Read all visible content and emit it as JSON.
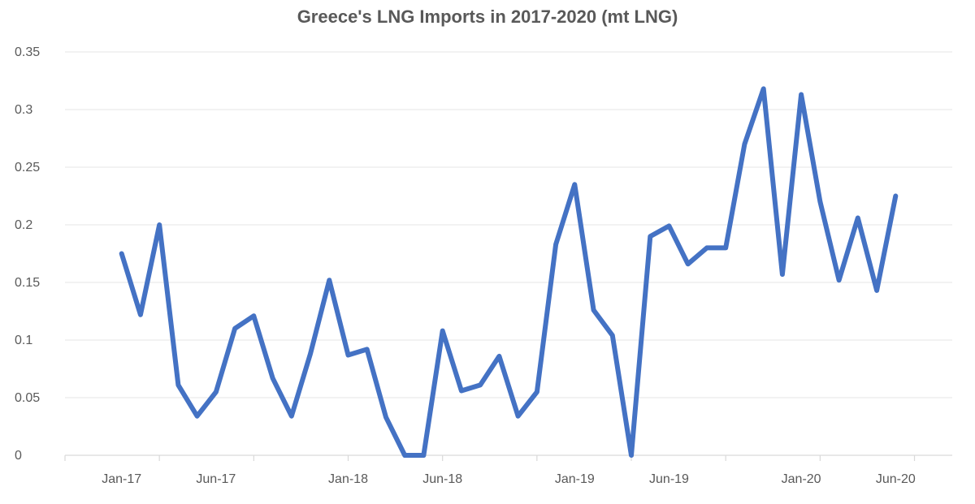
{
  "chart_data": {
    "type": "line",
    "title": "Greece's LNG Imports in 2017-2020 (mt LNG)",
    "xlabel": "",
    "ylabel": "",
    "ylim": [
      0,
      0.35
    ],
    "yticks": [
      0,
      0.05,
      0.1,
      0.15,
      0.2,
      0.25,
      0.3,
      0.35
    ],
    "ytick_labels": [
      "0",
      "0.05",
      "0.1",
      "0.15",
      "0.2",
      "0.25",
      "0.3",
      "0.35"
    ],
    "x_tick_labels": [
      "Jan-17",
      "Jun-17",
      "Jan-18",
      "Jun-18",
      "Jan-19",
      "Jun-19",
      "Jan-20",
      "Jun-20"
    ],
    "x": [
      "2017-01",
      "2017-02",
      "2017-03",
      "2017-04",
      "2017-05",
      "2017-06",
      "2017-07",
      "2017-08",
      "2017-09",
      "2017-10",
      "2017-11",
      "2017-12",
      "2018-01",
      "2018-02",
      "2018-03",
      "2018-04",
      "2018-05",
      "2018-06",
      "2018-07",
      "2018-08",
      "2018-09",
      "2018-10",
      "2018-11",
      "2018-12",
      "2019-01",
      "2019-02",
      "2019-03",
      "2019-04",
      "2019-05",
      "2019-06",
      "2019-07",
      "2019-08",
      "2019-09",
      "2019-10",
      "2019-11",
      "2019-12",
      "2020-01",
      "2020-02",
      "2020-03",
      "2020-04",
      "2020-05",
      "2020-06"
    ],
    "series": [
      {
        "values": [
          0.175,
          0.122,
          0.2,
          0.061,
          0.034,
          0.055,
          0.11,
          0.121,
          0.067,
          0.034,
          0.088,
          0.152,
          0.087,
          0.092,
          0.033,
          0.0,
          0.0,
          0.108,
          0.056,
          0.061,
          0.086,
          0.034,
          0.055,
          0.183,
          0.235,
          0.126,
          0.104,
          0.0,
          0.19,
          0.199,
          0.166,
          0.18,
          0.18,
          0.27,
          0.318,
          0.157,
          0.313,
          0.22,
          0.152,
          0.206,
          0.143,
          0.225
        ],
        "color": "#4472c4"
      }
    ],
    "grid": true,
    "legend": "none"
  }
}
